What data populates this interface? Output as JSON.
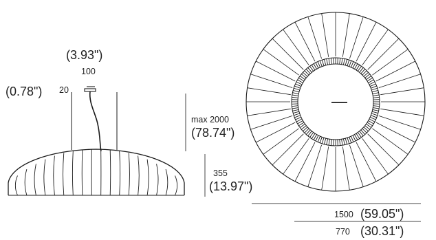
{
  "dimensions": {
    "canopy_width_mm": "100",
    "canopy_width_in": "(3.93\")",
    "canopy_height_mm": "20",
    "canopy_height_in": "(0.78\")",
    "cable_length_mm": "max 2000",
    "cable_length_in": "(78.74\")",
    "shade_height_mm": "355",
    "shade_height_in": "(13.97\")",
    "outer_diameter_mm": "1500",
    "outer_diameter_in": "(59.05\")",
    "inner_diameter_mm": "770",
    "inner_diameter_in": "(30.31\")"
  },
  "colors": {
    "line": "#1a1a1a",
    "dimension_line": "#444444"
  }
}
